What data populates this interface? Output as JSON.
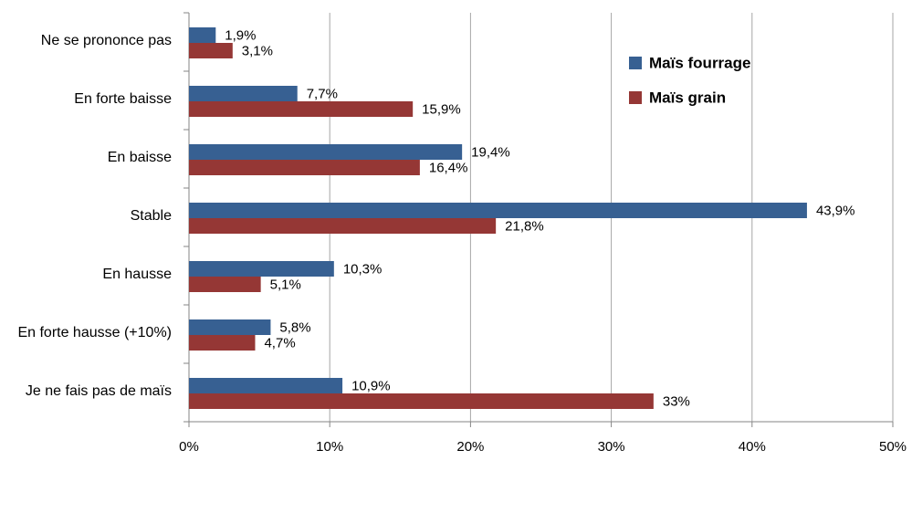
{
  "chart_data": {
    "type": "bar",
    "orientation": "horizontal",
    "categories": [
      "Ne se prononce pas",
      "En forte baisse",
      "En baisse",
      "Stable",
      "En hausse",
      "En forte hausse (+10%)",
      "Je ne fais pas de maïs"
    ],
    "series": [
      {
        "name": "Maïs fourrage",
        "color": "#376092",
        "values": [
          1.9,
          7.7,
          19.4,
          43.9,
          10.3,
          5.8,
          10.9
        ],
        "labels": [
          "1,9%",
          "7,7%",
          "19,4%",
          "43,9%",
          "10,3%",
          "5,8%",
          "10,9%"
        ]
      },
      {
        "name": "Maïs grain",
        "color": "#953735",
        "values": [
          3.1,
          15.9,
          16.4,
          21.8,
          5.1,
          4.7,
          33
        ],
        "labels": [
          "3,1%",
          "15,9%",
          "16,4%",
          "21,8%",
          "5,1%",
          "4,7%",
          "33%"
        ]
      }
    ],
    "xlim": [
      0,
      50
    ],
    "xticks": [
      0,
      10,
      20,
      30,
      40,
      50
    ],
    "xtick_labels": [
      "0%",
      "10%",
      "20%",
      "30%",
      "40%",
      "50%"
    ],
    "grid": true,
    "legend_position": "top-right"
  }
}
